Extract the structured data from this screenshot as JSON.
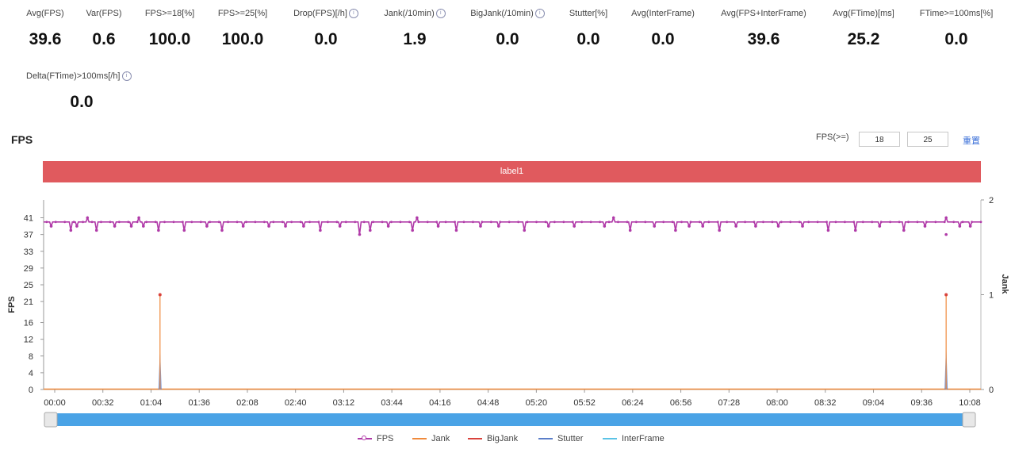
{
  "metrics_row1": [
    {
      "label": "Avg(FPS)",
      "value": "39.6",
      "info": false
    },
    {
      "label": "Var(FPS)",
      "value": "0.6",
      "info": false
    },
    {
      "label": "FPS>=18[%]",
      "value": "100.0",
      "info": false
    },
    {
      "label": "FPS>=25[%]",
      "value": "100.0",
      "info": false
    },
    {
      "label": "Drop(FPS)[/h]",
      "value": "0.0",
      "info": true
    },
    {
      "label": "Jank(/10min)",
      "value": "1.9",
      "info": true
    },
    {
      "label": "BigJank(/10min)",
      "value": "0.0",
      "info": true
    },
    {
      "label": "Stutter[%]",
      "value": "0.0",
      "info": false
    },
    {
      "label": "Avg(InterFrame)",
      "value": "0.0",
      "info": false
    },
    {
      "label": "Avg(FPS+InterFrame)",
      "value": "39.6",
      "info": false
    },
    {
      "label": "Avg(FTime)[ms]",
      "value": "25.2",
      "info": false
    },
    {
      "label": "FTime>=100ms[%]",
      "value": "0.0",
      "info": false
    }
  ],
  "metrics_row2": [
    {
      "label": "Delta(FTime)>100ms[/h]",
      "value": "0.0",
      "info": true
    }
  ],
  "chart_header": {
    "title": "FPS",
    "threshold_label": "FPS(>=)",
    "threshold_1": "18",
    "threshold_2": "25",
    "reset_label": "重置"
  },
  "label_bar": {
    "text": "label1",
    "color": "#e05a5e"
  },
  "colors": {
    "fps": "#b03aa8",
    "jank": "#f08a3c",
    "bigjank": "#d9423c",
    "stutter": "#5b7ec9",
    "interframe": "#5bc3e6",
    "slider": "#4aa3e6"
  },
  "chart_data": {
    "type": "line",
    "title": "FPS",
    "xlabel": "",
    "ylabel": "FPS",
    "y2label": "Jank",
    "x_ticks": [
      "00:00",
      "00:32",
      "01:04",
      "01:36",
      "02:08",
      "02:40",
      "03:12",
      "03:44",
      "04:16",
      "04:48",
      "05:20",
      "05:52",
      "06:24",
      "06:56",
      "07:28",
      "08:00",
      "08:32",
      "09:04",
      "09:36",
      "10:08"
    ],
    "y_ticks": [
      "0",
      "4",
      "8",
      "12",
      "16",
      "21",
      "25",
      "29",
      "33",
      "37",
      "41"
    ],
    "y2_ticks": [
      "0",
      "1",
      "2"
    ],
    "ylim": [
      0,
      43
    ],
    "y2lim": [
      0,
      2
    ],
    "xlim_seconds": [
      0,
      620
    ],
    "fps_baseline": 40,
    "fps_dips": [
      {
        "t": 5,
        "v": 39
      },
      {
        "t": 18,
        "v": 38
      },
      {
        "t": 22,
        "v": 39
      },
      {
        "t": 35,
        "v": 38
      },
      {
        "t": 47,
        "v": 39
      },
      {
        "t": 58,
        "v": 39
      },
      {
        "t": 66,
        "v": 39
      },
      {
        "t": 76,
        "v": 38
      },
      {
        "t": 93,
        "v": 38
      },
      {
        "t": 108,
        "v": 39
      },
      {
        "t": 118,
        "v": 38
      },
      {
        "t": 132,
        "v": 39
      },
      {
        "t": 149,
        "v": 39
      },
      {
        "t": 160,
        "v": 39
      },
      {
        "t": 172,
        "v": 39
      },
      {
        "t": 183,
        "v": 38
      },
      {
        "t": 196,
        "v": 39
      },
      {
        "t": 209,
        "v": 37
      },
      {
        "t": 216,
        "v": 38
      },
      {
        "t": 228,
        "v": 39
      },
      {
        "t": 244,
        "v": 38
      },
      {
        "t": 261,
        "v": 39
      },
      {
        "t": 273,
        "v": 38
      },
      {
        "t": 289,
        "v": 39
      },
      {
        "t": 301,
        "v": 39
      },
      {
        "t": 318,
        "v": 38
      },
      {
        "t": 334,
        "v": 39
      },
      {
        "t": 351,
        "v": 39
      },
      {
        "t": 371,
        "v": 39
      },
      {
        "t": 388,
        "v": 38
      },
      {
        "t": 404,
        "v": 39
      },
      {
        "t": 418,
        "v": 38
      },
      {
        "t": 427,
        "v": 39
      },
      {
        "t": 436,
        "v": 39
      },
      {
        "t": 447,
        "v": 38
      },
      {
        "t": 458,
        "v": 39
      },
      {
        "t": 471,
        "v": 39
      },
      {
        "t": 486,
        "v": 39
      },
      {
        "t": 502,
        "v": 39
      },
      {
        "t": 519,
        "v": 38
      },
      {
        "t": 537,
        "v": 38
      },
      {
        "t": 553,
        "v": 39
      },
      {
        "t": 569,
        "v": 38
      },
      {
        "t": 583,
        "v": 39
      },
      {
        "t": 597,
        "v": 37
      },
      {
        "t": 606,
        "v": 39
      },
      {
        "t": 613,
        "v": 39
      }
    ],
    "fps_spikes": [
      {
        "t": 29,
        "v": 41
      },
      {
        "t": 63,
        "v": 41
      },
      {
        "t": 247,
        "v": 41
      },
      {
        "t": 377,
        "v": 41
      },
      {
        "t": 597,
        "v": 41
      }
    ],
    "jank_events": [
      {
        "t": 77,
        "v": 1
      },
      {
        "t": 597,
        "v": 1
      }
    ],
    "stutter_events": [
      {
        "t": 77,
        "v": 0.45
      },
      {
        "t": 597,
        "v": 0.5
      }
    ],
    "series": [
      {
        "name": "FPS"
      },
      {
        "name": "Jank"
      },
      {
        "name": "BigJank"
      },
      {
        "name": "Stutter"
      },
      {
        "name": "InterFrame"
      }
    ],
    "legend_position": "bottom",
    "grid": false
  }
}
